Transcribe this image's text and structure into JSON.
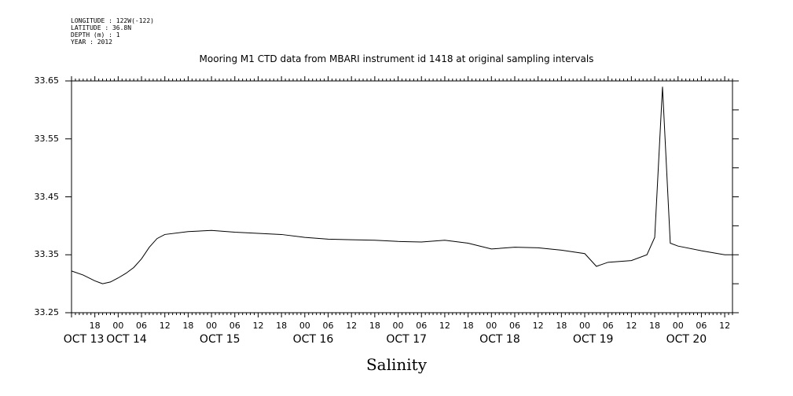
{
  "header": {
    "longitude": "LONGITUDE : 122W(-122)",
    "latitude": "LATITUDE : 36.8N",
    "depth": "DEPTH (m) : 1",
    "year": "YEAR : 2012"
  },
  "chart_data": {
    "type": "line",
    "title": "Mooring M1 CTD data from MBARI instrument id 1418 at original sampling intervals",
    "xlabel": "Salinity",
    "ylabel": "",
    "ylim": [
      33.25,
      33.65
    ],
    "yticks": [
      "33.65",
      "33.55",
      "33.45",
      "33.35",
      "33.25"
    ],
    "xlim_hours_label": "2012-10-13 12:00 to 2012-10-20 14:00",
    "hour_ticks": [
      "18",
      "00",
      "06",
      "12",
      "18",
      "00",
      "06",
      "12",
      "18",
      "00",
      "06",
      "12",
      "18",
      "00",
      "06",
      "12",
      "18",
      "00",
      "06",
      "12",
      "18",
      "00",
      "06",
      "12",
      "18",
      "00",
      "06",
      "12"
    ],
    "day_labels": [
      "OCT 13",
      "OCT 14",
      "OCT 15",
      "OCT 16",
      "OCT 17",
      "OCT 18",
      "OCT 19",
      "OCT 20"
    ],
    "grid": false,
    "series": [
      {
        "color": "#000000",
        "points": [
          [
            "2012-10-13 12:00",
            33.322
          ],
          [
            "2012-10-13 15:00",
            33.315
          ],
          [
            "2012-10-13 18:00",
            33.305
          ],
          [
            "2012-10-13 20:00",
            33.3
          ],
          [
            "2012-10-13 22:00",
            33.303
          ],
          [
            "2012-10-14 00:00",
            33.31
          ],
          [
            "2012-10-14 02:00",
            33.318
          ],
          [
            "2012-10-14 04:00",
            33.328
          ],
          [
            "2012-10-14 06:00",
            33.343
          ],
          [
            "2012-10-14 08:00",
            33.363
          ],
          [
            "2012-10-14 10:00",
            33.378
          ],
          [
            "2012-10-14 12:00",
            33.385
          ],
          [
            "2012-10-14 18:00",
            33.39
          ],
          [
            "2012-10-15 00:00",
            33.392
          ],
          [
            "2012-10-15 06:00",
            33.389
          ],
          [
            "2012-10-15 12:00",
            33.387
          ],
          [
            "2012-10-15 18:00",
            33.385
          ],
          [
            "2012-10-16 00:00",
            33.38
          ],
          [
            "2012-10-16 06:00",
            33.377
          ],
          [
            "2012-10-16 12:00",
            33.376
          ],
          [
            "2012-10-16 18:00",
            33.375
          ],
          [
            "2012-10-17 00:00",
            33.373
          ],
          [
            "2012-10-17 06:00",
            33.372
          ],
          [
            "2012-10-17 12:00",
            33.375
          ],
          [
            "2012-10-17 18:00",
            33.37
          ],
          [
            "2012-10-18 00:00",
            33.36
          ],
          [
            "2012-10-18 06:00",
            33.363
          ],
          [
            "2012-10-18 12:00",
            33.362
          ],
          [
            "2012-10-18 18:00",
            33.358
          ],
          [
            "2012-10-19 00:00",
            33.352
          ],
          [
            "2012-10-19 03:00",
            33.33
          ],
          [
            "2012-10-19 06:00",
            33.337
          ],
          [
            "2012-10-19 12:00",
            33.34
          ],
          [
            "2012-10-19 16:00",
            33.35
          ],
          [
            "2012-10-19 18:00",
            33.38
          ],
          [
            "2012-10-19 20:00",
            33.64
          ],
          [
            "2012-10-19 22:00",
            33.37
          ],
          [
            "2012-10-20 00:00",
            33.365
          ],
          [
            "2012-10-20 06:00",
            33.357
          ],
          [
            "2012-10-20 12:00",
            33.35
          ],
          [
            "2012-10-20 14:00",
            33.35
          ]
        ]
      }
    ]
  }
}
